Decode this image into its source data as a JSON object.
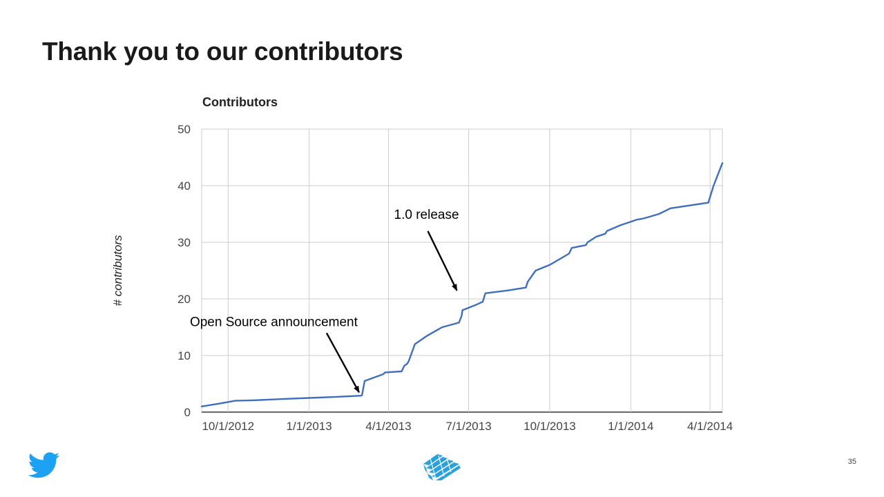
{
  "slide": {
    "title": "Thank you to our contributors",
    "page_number": "35"
  },
  "colors": {
    "line": "#3f6ebf",
    "grid": "#cccccc",
    "twitter_blue": "#1da1f2",
    "mesos_blue": "#2aa0dc"
  },
  "icons": {
    "left_logo": "twitter-bird-icon",
    "center_logo": "apache-mesos-logo-icon"
  },
  "chart_data": {
    "type": "line",
    "title": "Contributors",
    "xlabel": "",
    "ylabel": "# contributors",
    "ylim": [
      0,
      50
    ],
    "yticks": [
      0,
      10,
      20,
      30,
      40,
      50
    ],
    "xlim": [
      "2012-09-01",
      "2014-04-15"
    ],
    "xticks": [
      {
        "date": "2012-10-01",
        "label": "10/1/2012"
      },
      {
        "date": "2013-01-01",
        "label": "1/1/2013"
      },
      {
        "date": "2013-04-01",
        "label": "4/1/2013"
      },
      {
        "date": "2013-07-01",
        "label": "7/1/2013"
      },
      {
        "date": "2013-10-01",
        "label": "10/1/2013"
      },
      {
        "date": "2014-01-01",
        "label": "1/1/2014"
      },
      {
        "date": "2014-04-01",
        "label": "4/1/2014"
      }
    ],
    "grid": true,
    "legend": "none",
    "series": [
      {
        "x": [
          "2012-09-01",
          "2012-09-21",
          "2012-10-09",
          "2012-11-01",
          "2012-12-01",
          "2013-01-01",
          "2013-02-01",
          "2013-03-01",
          "2013-03-02",
          "2013-03-05",
          "2013-03-26",
          "2013-03-28",
          "2013-04-16",
          "2013-04-19",
          "2013-04-22",
          "2013-04-24",
          "2013-05-01",
          "2013-05-15",
          "2013-06-01",
          "2013-06-20",
          "2013-06-23",
          "2013-06-24",
          "2013-07-10",
          "2013-07-17",
          "2013-07-20",
          "2013-08-15",
          "2013-09-04",
          "2013-09-06",
          "2013-09-15",
          "2013-10-01",
          "2013-10-23",
          "2013-10-26",
          "2013-11-11",
          "2013-11-13",
          "2013-11-23",
          "2013-12-03",
          "2013-12-05",
          "2013-12-20",
          "2014-01-08",
          "2014-01-15",
          "2014-01-22",
          "2014-02-02",
          "2014-02-15",
          "2014-03-30",
          "2014-04-05",
          "2014-04-15"
        ],
        "y": [
          1,
          1.5,
          2,
          2.1,
          2.3,
          2.5,
          2.7,
          2.9,
          3,
          5.5,
          6.7,
          7,
          7.2,
          8.2,
          8.5,
          9,
          12,
          13.5,
          15,
          15.8,
          17,
          18,
          19,
          19.5,
          21,
          21.5,
          22,
          23,
          25,
          26,
          28,
          29,
          29.5,
          30,
          31,
          31.5,
          32,
          33,
          34,
          34.2,
          34.5,
          35,
          36,
          37,
          40,
          44
        ]
      }
    ],
    "annotations": [
      {
        "text": "Open Source announcement",
        "target": {
          "x": "2013-03-01",
          "y": 3
        }
      },
      {
        "text": "1.0 release",
        "target": {
          "x": "2013-06-20",
          "y": 21
        }
      }
    ]
  }
}
